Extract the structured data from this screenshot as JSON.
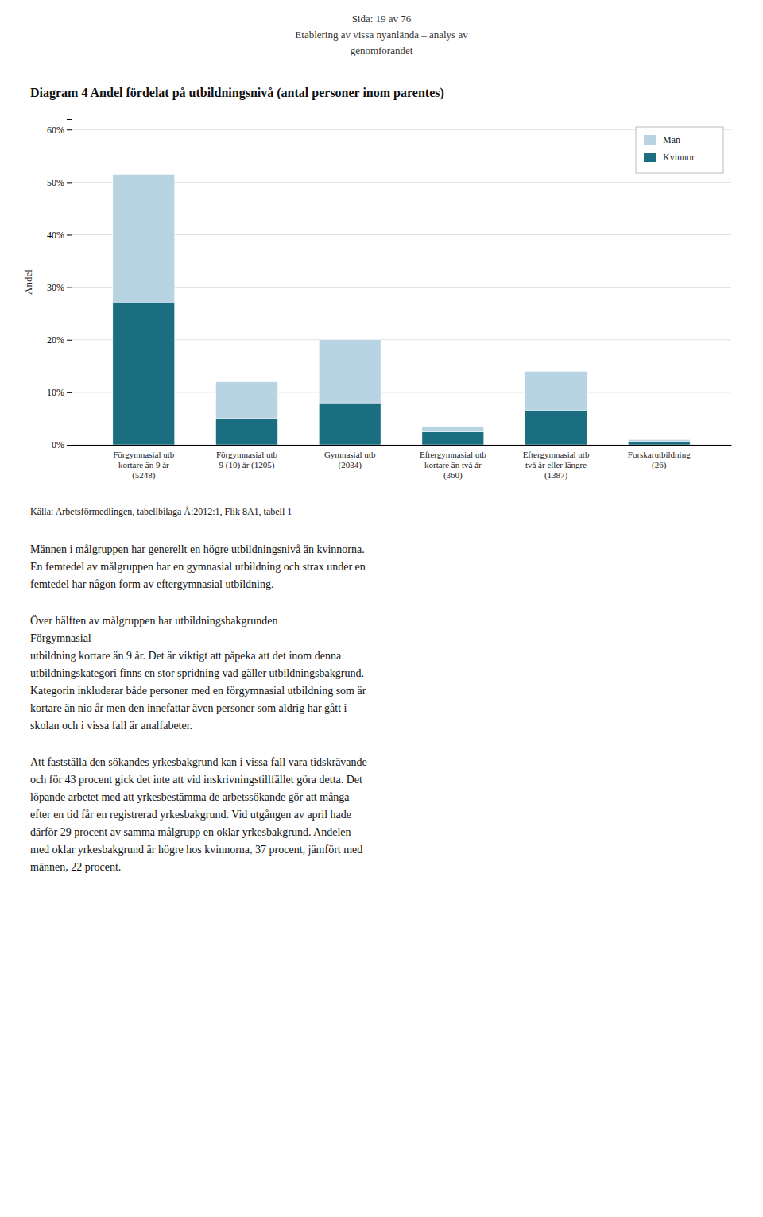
{
  "chart_data": {
    "type": "bar",
    "stacked": true,
    "title": "Diagram 4 Andel fördelat på utbildningsnivå (antal personer inom parentes)",
    "y_label": "Andel",
    "categories": [
      "Förgymnasial utb\nkortare än 9 år\n(5248)",
      "Förgymnasial utb\n9 (10) år (1205)",
      "Gymnasial utb\n(2034)",
      "Eftergymnasial utb\nkortare än två år\n(360)",
      "Eftergymnasial utb\ntvå år eller längre\n(1387)",
      "Forskarutbildning\n(26)"
    ],
    "series": [
      {
        "name": "Kvinnor",
        "color": "#1a6e80",
        "values": [
          0.27,
          0.05,
          0.08,
          0.025,
          0.065,
          0.007
        ]
      },
      {
        "name": "Män",
        "color": "#b8d4e3",
        "values": [
          0.245,
          0.07,
          0.12,
          0.01,
          0.075,
          0.003
        ]
      }
    ],
    "ylim": [
      0,
      0.62
    ],
    "yticks": [
      {
        "value": 0.0,
        "label": "0%"
      },
      {
        "value": 0.1,
        "label": "10%"
      },
      {
        "value": 0.2,
        "label": "20%"
      },
      {
        "value": 0.3,
        "label": "30%"
      },
      {
        "value": 0.4,
        "label": "40%"
      },
      {
        "value": 0.5,
        "label": "50%"
      },
      {
        "value": 0.6,
        "label": "60%"
      }
    ],
    "grid": true,
    "legend": "upper right",
    "annotations": [
      [
        "Sida: 19 av 76"
      ],
      [
        "Etablering av vissa nyanlända – analys av",
        "genomförandet"
      ],
      [
        "Källa: Arbetsförmedlingen, tabellbilaga Å:2012:1, Flik 8A1, tabell 1"
      ],
      [
        "Männen i målgruppen har generellt en högre utbildningsnivå än kvinnorna.",
        "En femtedel av målgruppen har en gymnasial utbildning och strax under en",
        "femtedel har någon form av eftergymnasial utbildning."
      ],
      [
        "Över hälften av målgruppen har utbildningsbakgrunden",
        "Förgymnasial",
        "utbildning kortare än 9 år. Det är viktigt att påpeka att det inom denna",
        "utbildningskategori finns en stor spridning vad gäller utbildningsbakgrund.",
        "Kategorin inkluderar både personer med en förgymnasial utbildning som är",
        "kortare än nio år men den innefattar även personer som aldrig har gått i",
        "skolan och i vissa fall är analfabeter."
      ],
      [
        "Att fastställa den sökandes yrkesbakgrund kan i vissa fall vara tidskrävande",
        "och för 43 procent gick det inte att vid inskrivningstillfället göra detta. Det",
        "löpande arbetet med att yrkesbestämma de arbetssökande gör att många",
        "efter en tid får en registrerad yrkesbakgrund. Vid utgången av april hade",
        "därför 29 procent av samma målgrupp en oklar yrkesbakgrund. Andelen",
        "med oklar yrkesbakgrund är högre hos kvinnorna, 37 procent, jämfört med",
        "männen, 22 procent."
      ]
    ]
  }
}
